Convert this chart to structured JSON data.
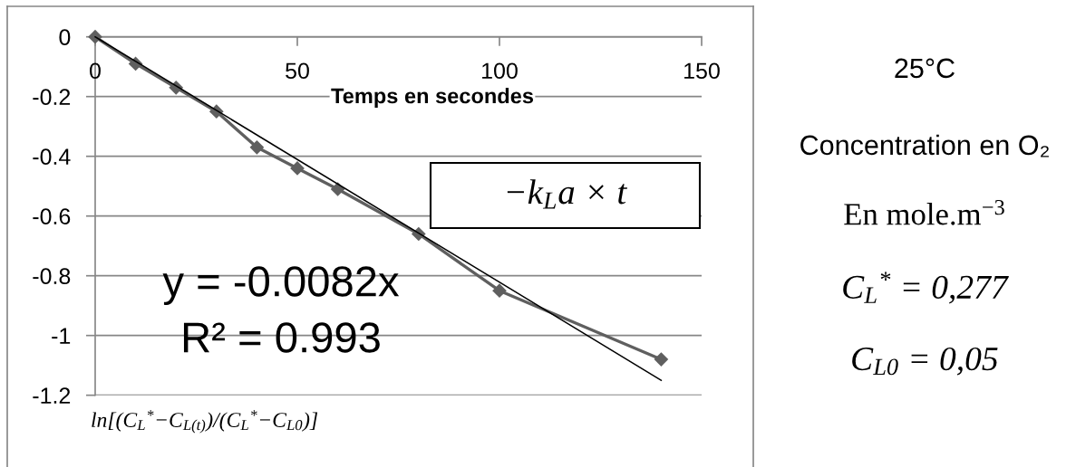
{
  "chart_data": {
    "type": "line",
    "xlabel": "Temps en secondes",
    "ylabel": "ln[(C$_{L}$$^{*}$−C$_{L(t)}$)/(C$_{L}$$^{*}$−C$_{L0}$)]",
    "series": [
      {
        "color": "#5f5f5f",
        "marker": "diamond",
        "x": [
          0,
          10,
          20,
          30,
          40,
          50,
          60,
          80,
          100,
          140
        ],
        "values": [
          0,
          -0.09,
          -0.17,
          -0.25,
          -0.37,
          -0.44,
          -0.51,
          -0.66,
          -0.85,
          -1.08
        ]
      },
      {
        "color": "#000000",
        "marker": "none",
        "x": [
          0,
          140
        ],
        "values": [
          0,
          -1.15
        ]
      }
    ],
    "xlim": [
      0,
      150
    ],
    "xticks": [
      0,
      50,
      100,
      150
    ],
    "ylim": [
      -1.2,
      0
    ],
    "yticks": [
      -1.2,
      -1,
      -0.8,
      -0.6,
      -0.4,
      -0.2,
      0
    ],
    "grid": "y",
    "annotations": [
      "y = -0.0082x",
      "R² = 0.993",
      "−k$_{L}$a × t",
      "25°C",
      "Concentration en O₂",
      "En mole.m$^{−3}$",
      "C$_{L}$$^{*}$ = 0,277",
      "C$_{L0}$ = 0,05"
    ]
  }
}
